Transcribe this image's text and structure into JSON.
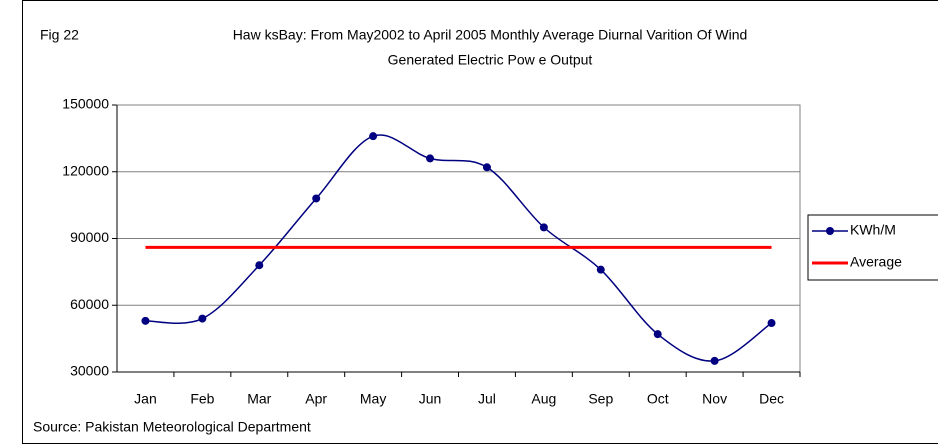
{
  "chart_data": {
    "type": "line",
    "figure_label": "Fig 22",
    "title_lines": [
      "Haw ksBay: From May2002 to April 2005 Monthly Average Diurnal Varition Of Wind",
      "Generated Electric Pow e Output"
    ],
    "source": "Source: Pakistan Meteorological Department",
    "categories": [
      "Jan",
      "Feb",
      "Mar",
      "Apr",
      "May",
      "Jun",
      "Jul",
      "Aug",
      "Sep",
      "Oct",
      "Nov",
      "Dec"
    ],
    "series": [
      {
        "name": "KWh/M",
        "color": "#000080",
        "smooth": true,
        "marker": true,
        "values": [
          53000,
          54000,
          78000,
          108000,
          136000,
          126000,
          122000,
          95000,
          76000,
          47000,
          35000,
          52000
        ]
      },
      {
        "name": "Average",
        "color": "#ff0000",
        "smooth": false,
        "marker": false,
        "values": [
          86000,
          86000,
          86000,
          86000,
          86000,
          86000,
          86000,
          86000,
          86000,
          86000,
          86000,
          86000
        ]
      }
    ],
    "ylim": [
      30000,
      150000
    ],
    "yticks": [
      30000,
      60000,
      90000,
      120000,
      150000
    ],
    "grid": true,
    "legend": "right"
  }
}
